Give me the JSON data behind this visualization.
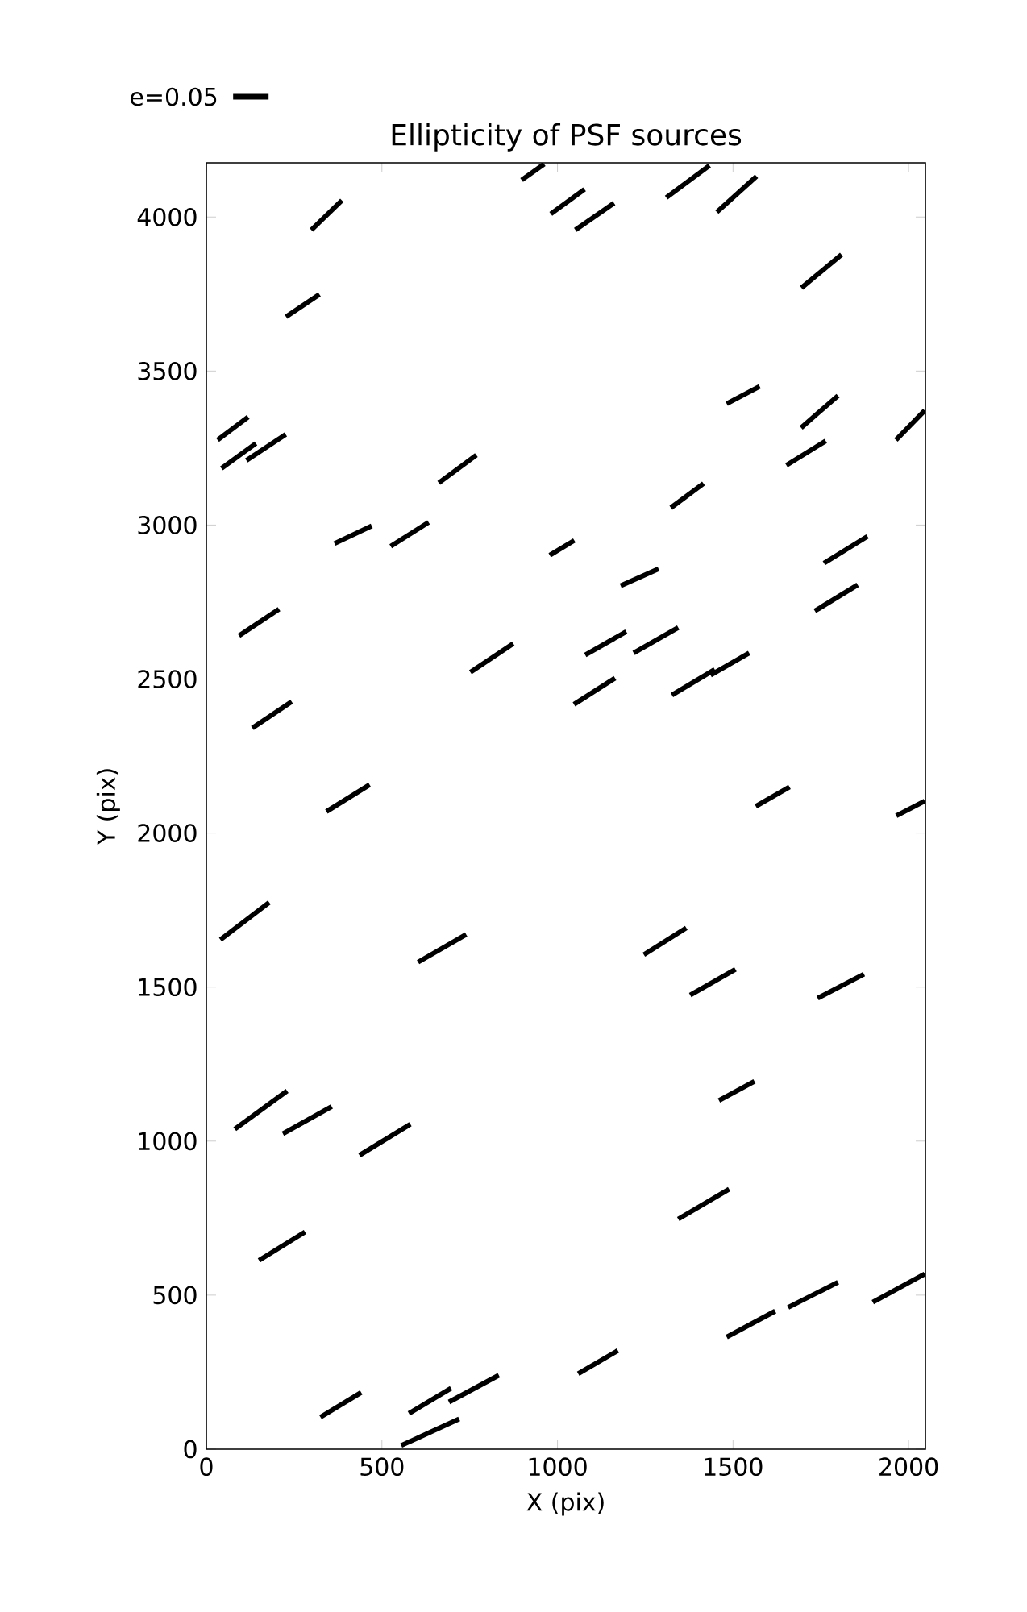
{
  "chart_data": {
    "type": "line",
    "title": "Ellipticity of PSF sources",
    "xlabel": "X (pix)",
    "ylabel": "Y (pix)",
    "annotations": [
      "e=0.05"
    ],
    "xlim": [
      0,
      2048
    ],
    "ylim": [
      0,
      4176
    ],
    "xticks": [
      0,
      500,
      1000,
      1500,
      2000
    ],
    "yticks": [
      0,
      500,
      1000,
      1500,
      2000,
      2500,
      3000,
      3500,
      4000
    ],
    "series": [
      {
        "color": "#000000",
        "x": [
          898,
          962
        ],
        "values": [
          4120,
          4172
        ]
      },
      {
        "color": "#000000",
        "x": [
          299,
          386
        ],
        "values": [
          3958,
          4054
        ]
      },
      {
        "color": "#000000",
        "x": [
          981,
          1077
        ],
        "values": [
          4010,
          4090
        ]
      },
      {
        "color": "#000000",
        "x": [
          1051,
          1161
        ],
        "values": [
          3958,
          4045
        ]
      },
      {
        "color": "#000000",
        "x": [
          1310,
          1433
        ],
        "values": [
          4063,
          4167
        ]
      },
      {
        "color": "#000000",
        "x": [
          1454,
          1567
        ],
        "values": [
          4016,
          4132
        ]
      },
      {
        "color": "#000000",
        "x": [
          1695,
          1809
        ],
        "values": [
          3770,
          3878
        ]
      },
      {
        "color": "#000000",
        "x": [
          227,
          322
        ],
        "values": [
          3676,
          3749
        ]
      },
      {
        "color": "#000000",
        "x": [
          1482,
          1576
        ],
        "values": [
          3394,
          3450
        ]
      },
      {
        "color": "#000000",
        "x": [
          1694,
          1799
        ],
        "values": [
          3316,
          3420
        ]
      },
      {
        "color": "#000000",
        "x": [
          1964,
          2046
        ],
        "values": [
          3276,
          3372
        ]
      },
      {
        "color": "#000000",
        "x": [
          32,
          119
        ],
        "values": [
          3276,
          3351
        ]
      },
      {
        "color": "#000000",
        "x": [
          43,
          141
        ],
        "values": [
          3184,
          3265
        ]
      },
      {
        "color": "#000000",
        "x": [
          114,
          226
        ],
        "values": [
          3210,
          3294
        ]
      },
      {
        "color": "#000000",
        "x": [
          1652,
          1764
        ],
        "values": [
          3194,
          3273
        ]
      },
      {
        "color": "#000000",
        "x": [
          662,
          769
        ],
        "values": [
          3137,
          3227
        ]
      },
      {
        "color": "#000000",
        "x": [
          1323,
          1416
        ],
        "values": [
          3056,
          3135
        ]
      },
      {
        "color": "#000000",
        "x": [
          365,
          471
        ],
        "values": [
          2940,
          2997
        ]
      },
      {
        "color": "#000000",
        "x": [
          525,
          633
        ],
        "values": [
          2931,
          3009
        ]
      },
      {
        "color": "#000000",
        "x": [
          978,
          1048
        ],
        "values": [
          2902,
          2950
        ]
      },
      {
        "color": "#000000",
        "x": [
          1759,
          1883
        ],
        "values": [
          2876,
          2963
        ]
      },
      {
        "color": "#000000",
        "x": [
          1180,
          1288
        ],
        "values": [
          2803,
          2858
        ]
      },
      {
        "color": "#000000",
        "x": [
          1733,
          1855
        ],
        "values": [
          2721,
          2806
        ]
      },
      {
        "color": "#000000",
        "x": [
          93,
          207
        ],
        "values": [
          2641,
          2727
        ]
      },
      {
        "color": "#000000",
        "x": [
          752,
          874
        ],
        "values": [
          2522,
          2615
        ]
      },
      {
        "color": "#000000",
        "x": [
          1079,
          1196
        ],
        "values": [
          2578,
          2654
        ]
      },
      {
        "color": "#000000",
        "x": [
          1217,
          1344
        ],
        "values": [
          2585,
          2667
        ]
      },
      {
        "color": "#000000",
        "x": [
          1047,
          1164
        ],
        "values": [
          2418,
          2503
        ]
      },
      {
        "color": "#000000",
        "x": [
          1326,
          1448
        ],
        "values": [
          2448,
          2531
        ]
      },
      {
        "color": "#000000",
        "x": [
          1436,
          1546
        ],
        "values": [
          2513,
          2585
        ]
      },
      {
        "color": "#000000",
        "x": [
          131,
          243
        ],
        "values": [
          2341,
          2427
        ]
      },
      {
        "color": "#000000",
        "x": [
          342,
          465
        ],
        "values": [
          2070,
          2157
        ]
      },
      {
        "color": "#000000",
        "x": [
          1565,
          1661
        ],
        "values": [
          2087,
          2150
        ]
      },
      {
        "color": "#000000",
        "x": [
          1965,
          2046
        ],
        "values": [
          2056,
          2104
        ]
      },
      {
        "color": "#000000",
        "x": [
          40,
          179
        ],
        "values": [
          1654,
          1775
        ]
      },
      {
        "color": "#000000",
        "x": [
          603,
          740
        ],
        "values": [
          1581,
          1671
        ]
      },
      {
        "color": "#000000",
        "x": [
          1246,
          1367
        ],
        "values": [
          1605,
          1692
        ]
      },
      {
        "color": "#000000",
        "x": [
          1378,
          1507
        ],
        "values": [
          1474,
          1558
        ]
      },
      {
        "color": "#000000",
        "x": [
          1741,
          1873
        ],
        "values": [
          1464,
          1542
        ]
      },
      {
        "color": "#000000",
        "x": [
          81,
          230
        ],
        "values": [
          1039,
          1163
        ]
      },
      {
        "color": "#000000",
        "x": [
          218,
          357
        ],
        "values": [
          1024,
          1112
        ]
      },
      {
        "color": "#000000",
        "x": [
          436,
          581
        ],
        "values": [
          954,
          1055
        ]
      },
      {
        "color": "#000000",
        "x": [
          1460,
          1561
        ],
        "values": [
          1132,
          1194
        ]
      },
      {
        "color": "#000000",
        "x": [
          1344,
          1489
        ],
        "values": [
          747,
          844
        ]
      },
      {
        "color": "#000000",
        "x": [
          150,
          281
        ],
        "values": [
          613,
          705
        ]
      },
      {
        "color": "#000000",
        "x": [
          1482,
          1620
        ],
        "values": [
          364,
          448
        ]
      },
      {
        "color": "#000000",
        "x": [
          1657,
          1799
        ],
        "values": [
          460,
          542
        ]
      },
      {
        "color": "#000000",
        "x": [
          1898,
          2046
        ],
        "values": [
          477,
          569
        ]
      },
      {
        "color": "#000000",
        "x": [
          1059,
          1172
        ],
        "values": [
          245,
          320
        ]
      },
      {
        "color": "#000000",
        "x": [
          325,
          441
        ],
        "values": [
          104,
          184
        ]
      },
      {
        "color": "#000000",
        "x": [
          577,
          697
        ],
        "values": [
          116,
          198
        ]
      },
      {
        "color": "#000000",
        "x": [
          691,
          833
        ],
        "values": [
          153,
          240
        ]
      },
      {
        "color": "#000000",
        "x": [
          555,
          720
        ],
        "values": [
          12,
          98
        ]
      }
    ]
  }
}
